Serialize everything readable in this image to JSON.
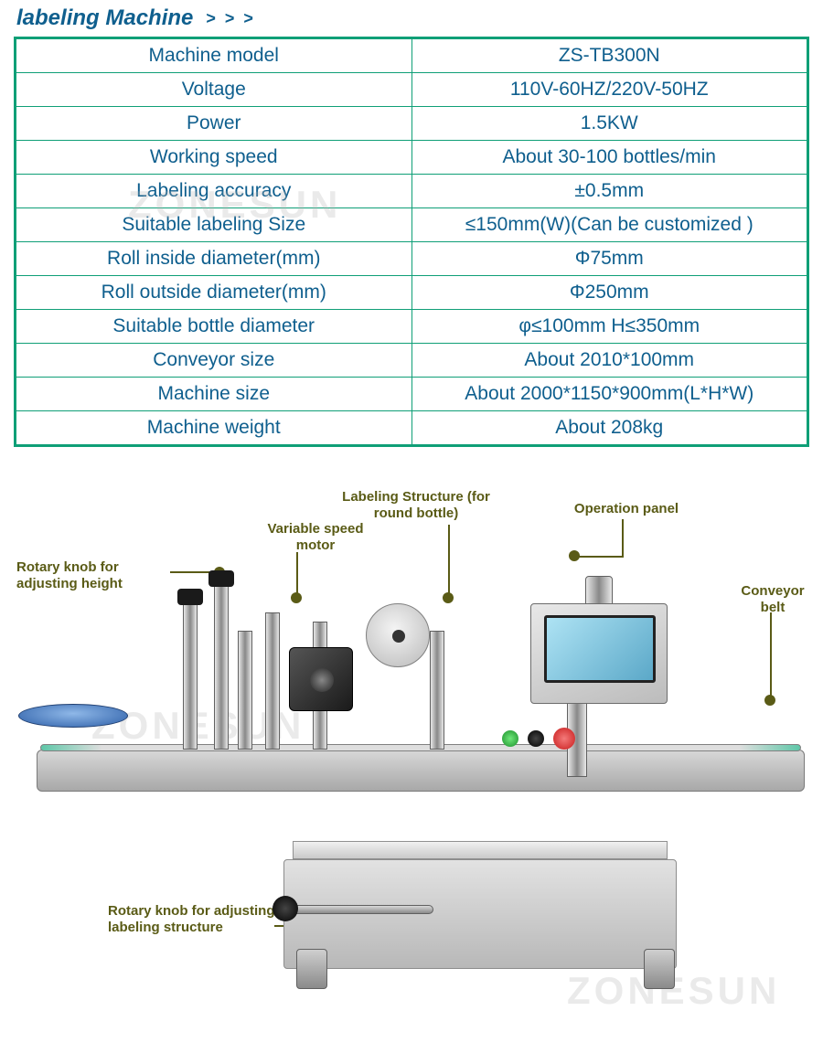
{
  "header": {
    "title": "labeling Machine"
  },
  "table": {
    "border_color": "#0f9f77",
    "text_color": "#0f5f8e",
    "rows": [
      {
        "key": "Machine model",
        "val": "ZS-TB300N"
      },
      {
        "key": "Voltage",
        "val": "110V-60HZ/220V-50HZ"
      },
      {
        "key": "Power",
        "val": "1.5KW"
      },
      {
        "key": "Working speed",
        "val": "About 30-100 bottles/min"
      },
      {
        "key": "Labeling accuracy",
        "val": "±0.5mm"
      },
      {
        "key": "Suitable labeling Size",
        "val": "≤150mm(W)(Can be customized )"
      },
      {
        "key": "Roll inside diameter(mm)",
        "val": "Φ75mm"
      },
      {
        "key": "Roll outside diameter(mm)",
        "val": "Φ250mm"
      },
      {
        "key": "Suitable bottle diameter",
        "val": "φ≤100mm H≤350mm"
      },
      {
        "key": "Conveyor size",
        "val": "About 2010*100mm"
      },
      {
        "key": "Machine size",
        "val": "About 2000*1150*900mm(L*H*W)"
      },
      {
        "key": "Machine weight",
        "val": "About 208kg"
      }
    ]
  },
  "annotations": {
    "rotary_height": "Rotary knob for adjusting height",
    "variable_speed": "Variable speed motor",
    "labeling_structure": "Labeling Structure (for round bottle)",
    "operation_panel": "Operation panel",
    "conveyor_belt": "Conveyor belt",
    "rotary_labeling": "Rotary knob for adjusting labeling structure"
  },
  "annotation_style": {
    "color": "#5a5b16",
    "font_size": 15,
    "font_weight": "bold"
  },
  "watermark": "ZONESUN"
}
